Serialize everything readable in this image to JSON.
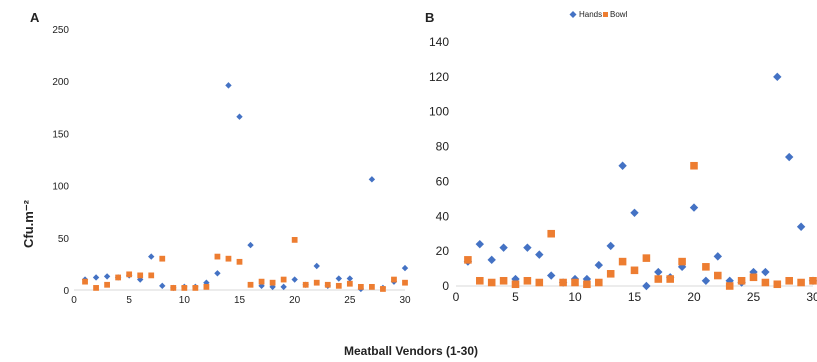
{
  "figure": {
    "ylabel": "Cfu.m⁻²",
    "xlabel": "Meatball Vendors (1-30)"
  },
  "legend": {
    "items": [
      {
        "label": "Hands",
        "color": "#4472c4",
        "marker": "diamond"
      },
      {
        "label": "Bowl",
        "color": "#ed7d31",
        "marker": "square"
      }
    ]
  },
  "chart_data": [
    {
      "panel": "A",
      "type": "scatter",
      "x_ticks": [
        "0",
        "5",
        "10",
        "15",
        "20",
        "25",
        "30"
      ],
      "y_ticks": [
        "0",
        "50",
        "100",
        "150",
        "200",
        "250"
      ],
      "xlim": [
        0,
        30
      ],
      "ylim": [
        0,
        250
      ],
      "series": [
        {
          "name": "Hands",
          "color": "#4472c4",
          "marker": "diamond",
          "x": [
            1,
            2,
            3,
            4,
            5,
            6,
            7,
            8,
            9,
            10,
            11,
            12,
            13,
            14,
            15,
            16,
            17,
            18,
            19,
            20,
            21,
            22,
            23,
            24,
            25,
            26,
            27,
            28,
            29,
            30
          ],
          "y": [
            10,
            12,
            13,
            12,
            14,
            10,
            32,
            4,
            2,
            3,
            3,
            7,
            16,
            196,
            166,
            43,
            4,
            3,
            3,
            10,
            5,
            23,
            4,
            11,
            11,
            1,
            106,
            2,
            8,
            21
          ]
        },
        {
          "name": "Bowl",
          "color": "#ed7d31",
          "marker": "square",
          "x": [
            1,
            2,
            3,
            4,
            5,
            6,
            7,
            8,
            9,
            10,
            11,
            12,
            13,
            14,
            15,
            16,
            17,
            18,
            19,
            20,
            21,
            22,
            23,
            24,
            25,
            26,
            27,
            28,
            29,
            30
          ],
          "y": [
            8,
            2,
            5,
            12,
            15,
            14,
            14,
            30,
            2,
            2,
            2,
            3,
            32,
            30,
            27,
            5,
            8,
            7,
            10,
            48,
            5,
            7,
            5,
            4,
            6,
            3,
            3,
            1,
            10,
            7
          ]
        }
      ]
    },
    {
      "panel": "B",
      "type": "scatter",
      "x_ticks": [
        "0",
        "5",
        "10",
        "15",
        "20",
        "25",
        "30"
      ],
      "y_ticks": [
        "0",
        "20",
        "40",
        "60",
        "80",
        "100",
        "120",
        "140"
      ],
      "xlim": [
        0,
        30
      ],
      "ylim": [
        0,
        140
      ],
      "series": [
        {
          "name": "Hands",
          "color": "#4472c4",
          "marker": "diamond",
          "x": [
            1,
            2,
            3,
            4,
            5,
            6,
            7,
            8,
            9,
            10,
            11,
            12,
            13,
            14,
            15,
            16,
            17,
            18,
            19,
            20,
            21,
            22,
            23,
            24,
            25,
            26,
            27,
            28,
            29,
            30
          ],
          "y": [
            14,
            24,
            15,
            22,
            4,
            22,
            18,
            6,
            2,
            4,
            4,
            12,
            23,
            69,
            42,
            0,
            8,
            5,
            11,
            45,
            3,
            17,
            3,
            2,
            8,
            8,
            120,
            74,
            34,
            3
          ]
        },
        {
          "name": "Bowl",
          "color": "#ed7d31",
          "marker": "square",
          "x": [
            1,
            2,
            3,
            4,
            5,
            6,
            7,
            8,
            9,
            10,
            11,
            12,
            13,
            14,
            15,
            16,
            17,
            18,
            19,
            20,
            21,
            22,
            23,
            24,
            25,
            26,
            27,
            28,
            29,
            30
          ],
          "y": [
            15,
            3,
            2,
            3,
            1,
            3,
            2,
            30,
            2,
            2,
            1,
            2,
            7,
            14,
            9,
            16,
            4,
            4,
            14,
            69,
            11,
            6,
            0,
            3,
            5,
            2,
            1,
            3,
            2,
            3
          ]
        }
      ]
    }
  ]
}
